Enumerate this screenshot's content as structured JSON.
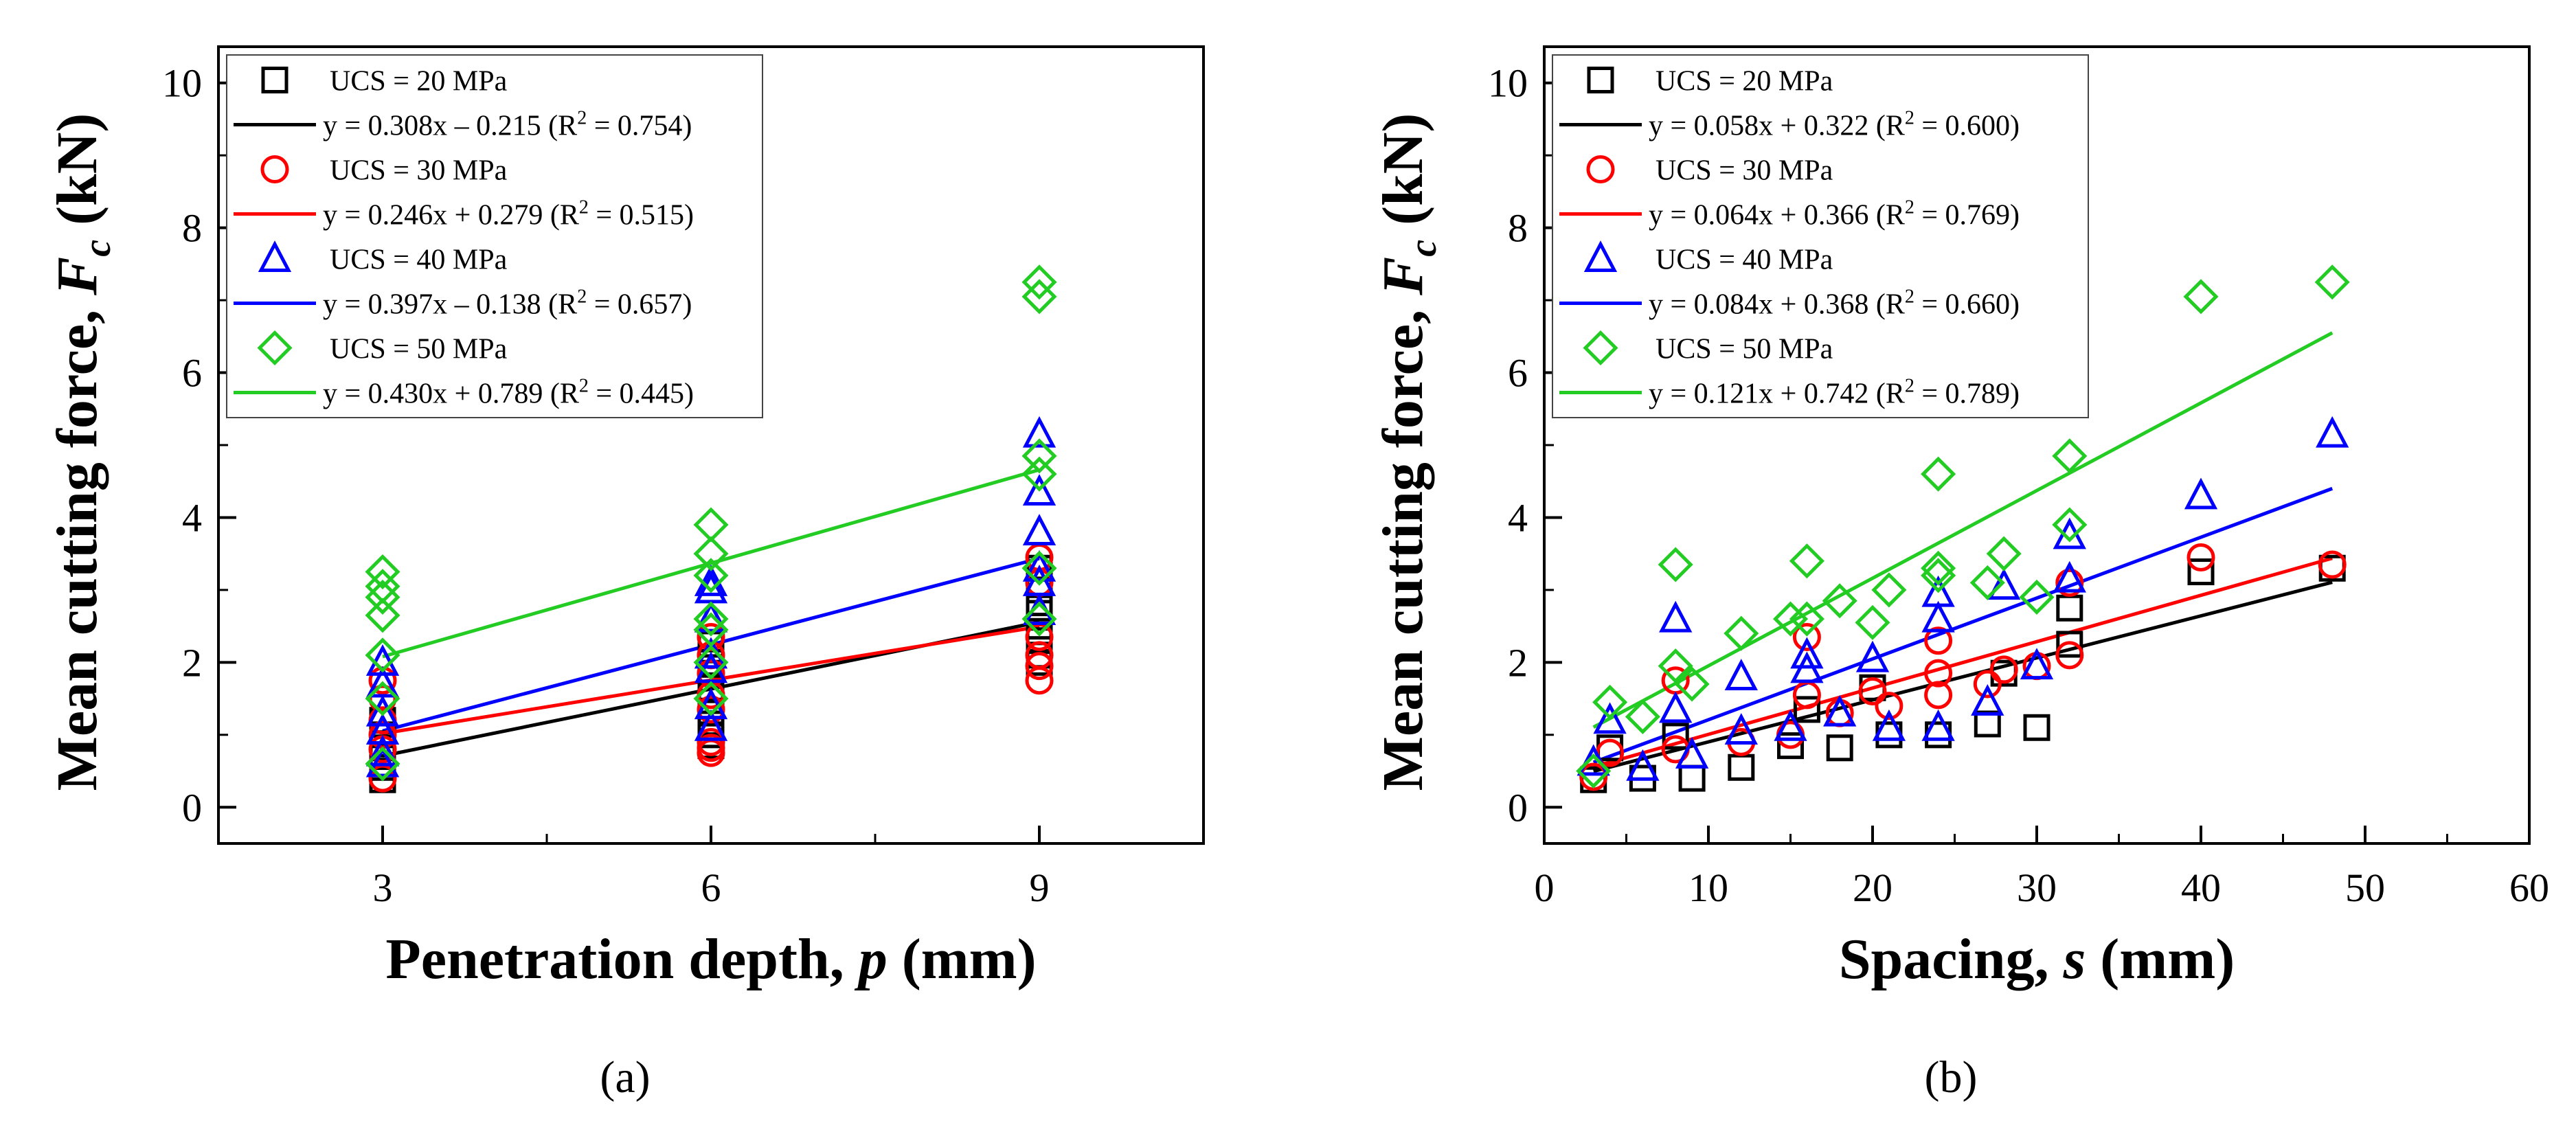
{
  "figure": {
    "panel_a_label": "(a)",
    "panel_b_label": "(b)"
  },
  "chart_data": [
    {
      "type": "scatter",
      "id": "a",
      "xlabel": "Penetration depth, p (mm)",
      "xlabel_parts": [
        "Penetration depth, ",
        "p",
        " (mm)"
      ],
      "ylabel": "Mean cutting force, Fc (kN)",
      "ylabel_parts": [
        "Mean cutting force, ",
        "F",
        "c",
        " (kN)"
      ],
      "xlim": [
        1.5,
        10.5
      ],
      "ylim": [
        -0.5,
        10.5
      ],
      "xticks": [
        3,
        6,
        9
      ],
      "yticks": [
        0,
        2,
        4,
        6,
        8,
        10
      ],
      "legend_position": "top-left",
      "series": [
        {
          "name": "UCS = 20 MPa",
          "color": "#000000",
          "marker": "square",
          "fit_label": "y = 0.308x – 0.215 (R",
          "fit_sup": "2",
          "fit_tail": " = 0.754)",
          "slope": 0.308,
          "intercept": -0.215,
          "fit_range": [
            3,
            9
          ],
          "x": [
            3,
            3,
            3,
            3,
            3,
            3,
            6,
            6,
            6,
            6,
            6,
            6,
            6,
            6,
            9,
            9,
            9,
            9,
            9,
            9,
            9
          ],
          "y": [
            0.38,
            0.55,
            0.7,
            0.82,
            1.0,
            1.2,
            0.85,
            1.0,
            1.15,
            1.3,
            1.65,
            1.85,
            2.0,
            2.25,
            2.0,
            2.1,
            2.3,
            2.5,
            2.75,
            3.0,
            3.3
          ]
        },
        {
          "name": "UCS = 30 MPa",
          "color": "#ff0000",
          "marker": "circle",
          "fit_label": "y = 0.246x + 0.279 (R",
          "fit_sup": "2",
          "fit_tail": " = 0.515)",
          "slope": 0.246,
          "intercept": 0.279,
          "fit_range": [
            3,
            9
          ],
          "x": [
            3,
            3,
            3,
            3,
            3,
            3,
            3,
            6,
            6,
            6,
            6,
            6,
            6,
            6,
            6,
            9,
            9,
            9,
            9,
            9,
            9
          ],
          "y": [
            0.4,
            0.6,
            0.8,
            1.0,
            1.2,
            1.5,
            1.75,
            0.75,
            0.82,
            0.9,
            1.35,
            1.55,
            1.85,
            2.1,
            2.35,
            1.75,
            1.95,
            2.1,
            2.35,
            3.1,
            3.45
          ]
        },
        {
          "name": "UCS = 40 MPa",
          "color": "#0000ff",
          "marker": "triangle",
          "fit_label": "y = 0.397x – 0.138 (R",
          "fit_sup": "2",
          "fit_tail": " = 0.657)",
          "slope": 0.397,
          "intercept": -0.138,
          "fit_range": [
            3,
            9
          ],
          "x": [
            3,
            3,
            3,
            3,
            3,
            3,
            6,
            6,
            6,
            6,
            6,
            6,
            6,
            9,
            9,
            9,
            9,
            9,
            9
          ],
          "y": [
            0.6,
            0.75,
            1.05,
            1.3,
            1.7,
            2.0,
            1.1,
            1.4,
            1.9,
            2.1,
            2.6,
            3.0,
            3.1,
            2.7,
            3.1,
            3.8,
            4.35,
            5.15,
            3.3
          ]
        },
        {
          "name": "UCS = 50 MPa",
          "color": "#22cc22",
          "marker": "diamond",
          "fit_label": "y = 0.430x + 0.789 (R",
          "fit_sup": "2",
          "fit_tail": " = 0.445)",
          "slope": 0.43,
          "intercept": 0.789,
          "fit_range": [
            3,
            9
          ],
          "x": [
            3,
            3,
            3,
            3,
            3,
            3,
            3,
            6,
            6,
            6,
            6,
            6,
            6,
            6,
            9,
            9,
            9,
            9,
            9,
            9
          ],
          "y": [
            0.6,
            1.5,
            2.1,
            2.65,
            2.9,
            3.05,
            3.25,
            1.5,
            2.0,
            2.45,
            2.6,
            3.2,
            3.5,
            3.9,
            2.6,
            3.3,
            4.6,
            4.85,
            7.05,
            7.25
          ]
        }
      ]
    },
    {
      "type": "scatter",
      "id": "b",
      "xlabel": "Spacing, s (mm)",
      "xlabel_parts": [
        "Spacing, ",
        "s",
        " (mm)"
      ],
      "ylabel": "Mean cutting force, Fc (kN)",
      "ylabel_parts": [
        "Mean cutting force, ",
        "F",
        "c",
        " (kN)"
      ],
      "xlim": [
        0,
        60
      ],
      "ylim": [
        -0.5,
        10.5
      ],
      "xticks": [
        0,
        10,
        20,
        30,
        40,
        50,
        60
      ],
      "yticks": [
        0,
        2,
        4,
        6,
        8,
        10
      ],
      "legend_position": "top-left",
      "series": [
        {
          "name": "UCS = 20 MPa",
          "color": "#000000",
          "marker": "square",
          "fit_label": "y = 0.058x + 0.322 (R",
          "fit_sup": "2",
          "fit_tail": " = 0.600)",
          "slope": 0.058,
          "intercept": 0.322,
          "fit_range": [
            3,
            48
          ],
          "x": [
            3,
            4,
            6,
            8,
            9,
            12,
            15,
            16,
            18,
            20,
            21,
            24,
            27,
            28,
            30,
            32,
            32,
            40,
            48
          ],
          "y": [
            0.38,
            0.82,
            0.4,
            0.98,
            0.4,
            0.55,
            0.85,
            1.35,
            0.82,
            1.65,
            1.0,
            1.0,
            1.15,
            1.85,
            1.1,
            2.25,
            2.75,
            3.25,
            3.3
          ]
        },
        {
          "name": "UCS = 30 MPa",
          "color": "#ff0000",
          "marker": "circle",
          "fit_label": "y = 0.064x + 0.366 (R",
          "fit_sup": "2",
          "fit_tail": " = 0.769)",
          "slope": 0.064,
          "intercept": 0.366,
          "fit_range": [
            3,
            48
          ],
          "x": [
            3,
            4,
            8,
            8,
            12,
            15,
            16,
            16,
            18,
            20,
            21,
            24,
            24,
            24,
            27,
            28,
            30,
            32,
            32,
            40,
            48
          ],
          "y": [
            0.42,
            0.75,
            0.8,
            1.75,
            0.9,
            1.0,
            1.55,
            2.35,
            1.3,
            1.6,
            1.4,
            1.55,
            1.85,
            2.3,
            1.7,
            1.9,
            1.95,
            2.1,
            3.1,
            3.45,
            3.35
          ]
        },
        {
          "name": "UCS = 40 MPa",
          "color": "#0000ff",
          "marker": "triangle",
          "fit_label": "y = 0.084x + 0.368 (R",
          "fit_sup": "2",
          "fit_tail": " = 0.660)",
          "slope": 0.084,
          "intercept": 0.368,
          "fit_range": [
            3,
            48
          ],
          "x": [
            3,
            4,
            6,
            8,
            8,
            9,
            12,
            12,
            15,
            16,
            16,
            18,
            20,
            21,
            24,
            24,
            24,
            27,
            28,
            30,
            32,
            32,
            40,
            48
          ],
          "y": [
            0.62,
            1.2,
            0.55,
            1.35,
            2.6,
            0.72,
            1.05,
            1.8,
            1.1,
            1.9,
            2.1,
            1.3,
            2.05,
            1.1,
            1.1,
            2.6,
            2.95,
            1.45,
            3.05,
            1.95,
            3.15,
            3.75,
            4.3,
            5.15
          ]
        },
        {
          "name": "UCS = 50 MPa",
          "color": "#22cc22",
          "marker": "diamond",
          "fit_label": "y = 0.121x + 0.742 (R",
          "fit_sup": "2",
          "fit_tail": " = 0.789)",
          "slope": 0.121,
          "intercept": 0.742,
          "fit_range": [
            3,
            48
          ],
          "x": [
            3,
            4,
            6,
            8,
            8,
            9,
            12,
            15,
            16,
            16,
            18,
            20,
            21,
            24,
            24,
            24,
            27,
            28,
            30,
            32,
            32,
            40,
            48
          ],
          "y": [
            0.5,
            1.45,
            1.25,
            1.95,
            3.35,
            1.7,
            2.4,
            2.6,
            2.6,
            3.4,
            2.85,
            2.55,
            3.0,
            3.2,
            3.3,
            4.6,
            3.1,
            3.5,
            2.9,
            3.9,
            4.85,
            7.05,
            7.25
          ]
        }
      ]
    }
  ]
}
